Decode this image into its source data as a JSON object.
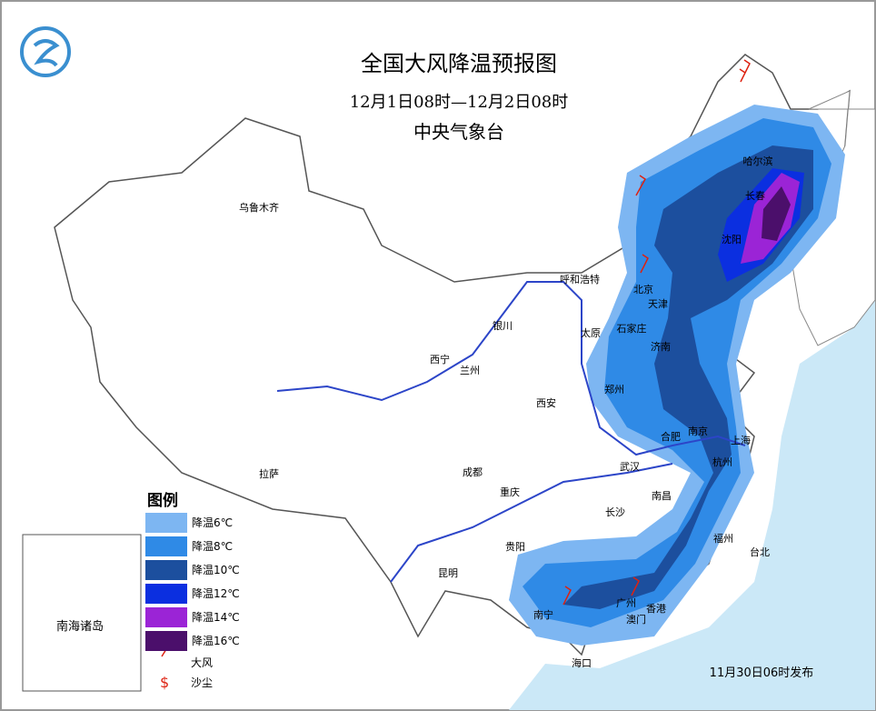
{
  "header": {
    "title": "全国大风降温预报图",
    "period": "12月1日08时—12月2日08时",
    "issuer": "中央气象台"
  },
  "cities": [
    "乌鲁木齐",
    "拉萨",
    "西宁",
    "兰州",
    "银川",
    "呼和浩特",
    "北京",
    "天津",
    "太原",
    "石家庄",
    "济南",
    "郑州",
    "西安",
    "成都",
    "重庆",
    "武汉",
    "合肥",
    "南京",
    "上海",
    "杭州",
    "南昌",
    "长沙",
    "贵阳",
    "昆明",
    "福州",
    "台北",
    "南宁",
    "广州",
    "香港",
    "澳门",
    "海口",
    "哈尔滨",
    "长春",
    "沈阳"
  ],
  "legend": {
    "title": "图例",
    "items": [
      {
        "label": "降温6℃",
        "color": "#7db6f2"
      },
      {
        "label": "降温8℃",
        "color": "#2f8ae6"
      },
      {
        "label": "降温10℃",
        "color": "#1c4f9e"
      },
      {
        "label": "降温12℃",
        "color": "#0b2fe0"
      },
      {
        "label": "降温14℃",
        "color": "#9b24d6"
      },
      {
        "label": "降温16℃",
        "color": "#4b0f6b"
      }
    ],
    "wind": "大风",
    "dust": "沙尘"
  },
  "inset": "南海诸岛",
  "issued": "11月30日06时发布"
}
